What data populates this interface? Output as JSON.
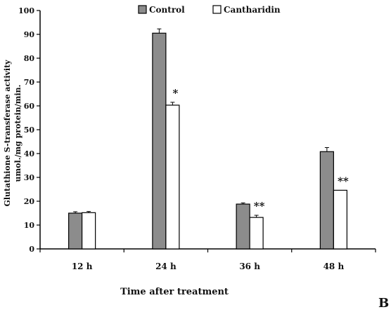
{
  "chart_data": {
    "type": "bar",
    "title": "",
    "xlabel": "Time after treatment",
    "ylabel_lines": [
      "Glutathione S-transferase activity",
      "umol./mg protein/min."
    ],
    "categories": [
      "12 h",
      "24 h",
      "36 h",
      "48 h"
    ],
    "ylim": [
      0,
      100
    ],
    "y_ticks": [
      "0",
      "10",
      "20",
      "30",
      "40",
      "50",
      "60",
      "70",
      "80",
      "90",
      "100"
    ],
    "grid": false,
    "legend_position": "top",
    "series": [
      {
        "name": "Control",
        "color": "#8c8c8c",
        "values": [
          15,
          90.5,
          18.8,
          40.8
        ],
        "errors": [
          0.6,
          1.8,
          0.5,
          1.7
        ],
        "annotations": [
          "",
          "",
          "",
          ""
        ]
      },
      {
        "name": "Cantharidin",
        "color": "#ffffff",
        "values": [
          15.2,
          60.3,
          13.2,
          24.6
        ],
        "errors": [
          0.5,
          1.2,
          0.9,
          0
        ],
        "annotations": [
          "",
          "*",
          "**",
          "**"
        ]
      }
    ],
    "panel_label": "B"
  }
}
